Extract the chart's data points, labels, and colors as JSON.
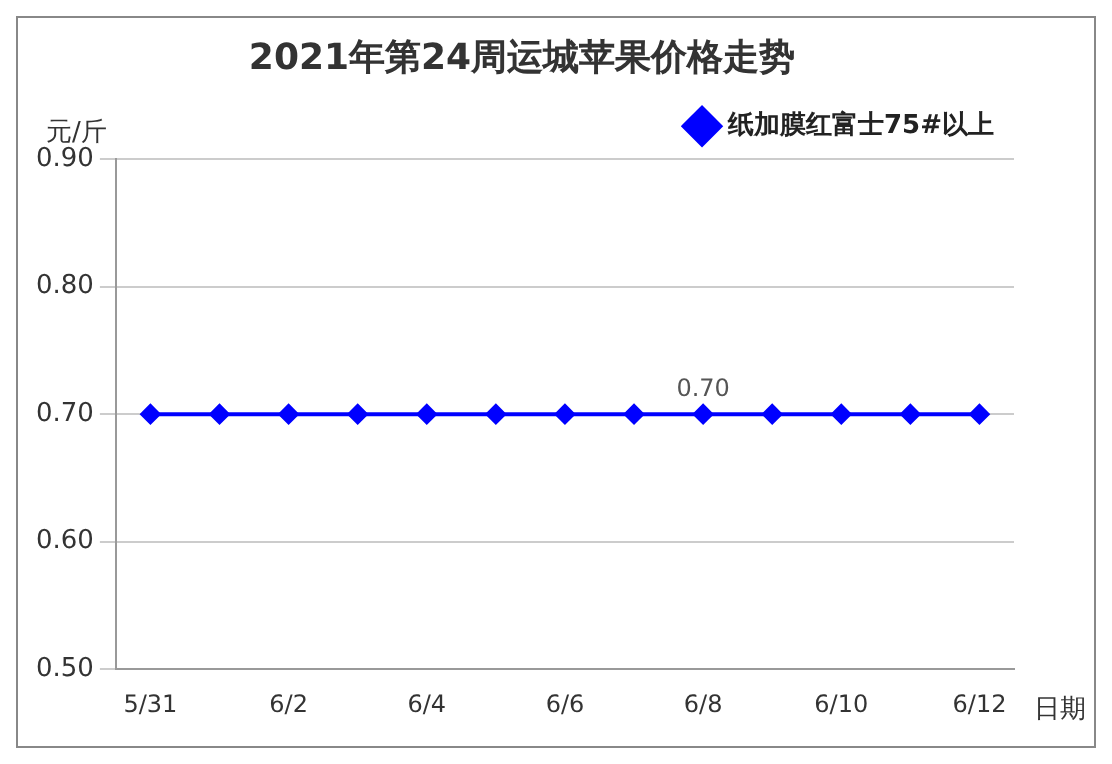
{
  "chart_data": {
    "type": "line",
    "title": "2021年第24周运城苹果价格走势",
    "ylabel": "元/斤",
    "xlabel": "日期",
    "categories": [
      "5/31",
      null,
      "6/2",
      null,
      "6/4",
      null,
      "6/6",
      null,
      "6/8",
      null,
      "6/10",
      null,
      "6/12"
    ],
    "series": [
      {
        "name": "纸加膜红富士75#以上",
        "color": "#0000ff",
        "values": [
          0.7,
          0.7,
          0.7,
          0.7,
          0.7,
          0.7,
          0.7,
          0.7,
          0.7,
          0.7,
          0.7,
          0.7,
          0.7
        ],
        "value_labels": [
          null,
          null,
          null,
          null,
          null,
          null,
          null,
          null,
          "0.70",
          null,
          null,
          null,
          null
        ]
      }
    ],
    "ylim": [
      0.5,
      0.9
    ],
    "yticks": [
      {
        "value": 0.5,
        "label": "0.50"
      },
      {
        "value": 0.6,
        "label": "0.60"
      },
      {
        "value": 0.7,
        "label": "0.70"
      },
      {
        "value": 0.8,
        "label": "0.80"
      },
      {
        "value": 0.9,
        "label": "0.90"
      }
    ],
    "grid": "y",
    "legend": "top right",
    "marker": "diamond",
    "line_style": "solid"
  }
}
